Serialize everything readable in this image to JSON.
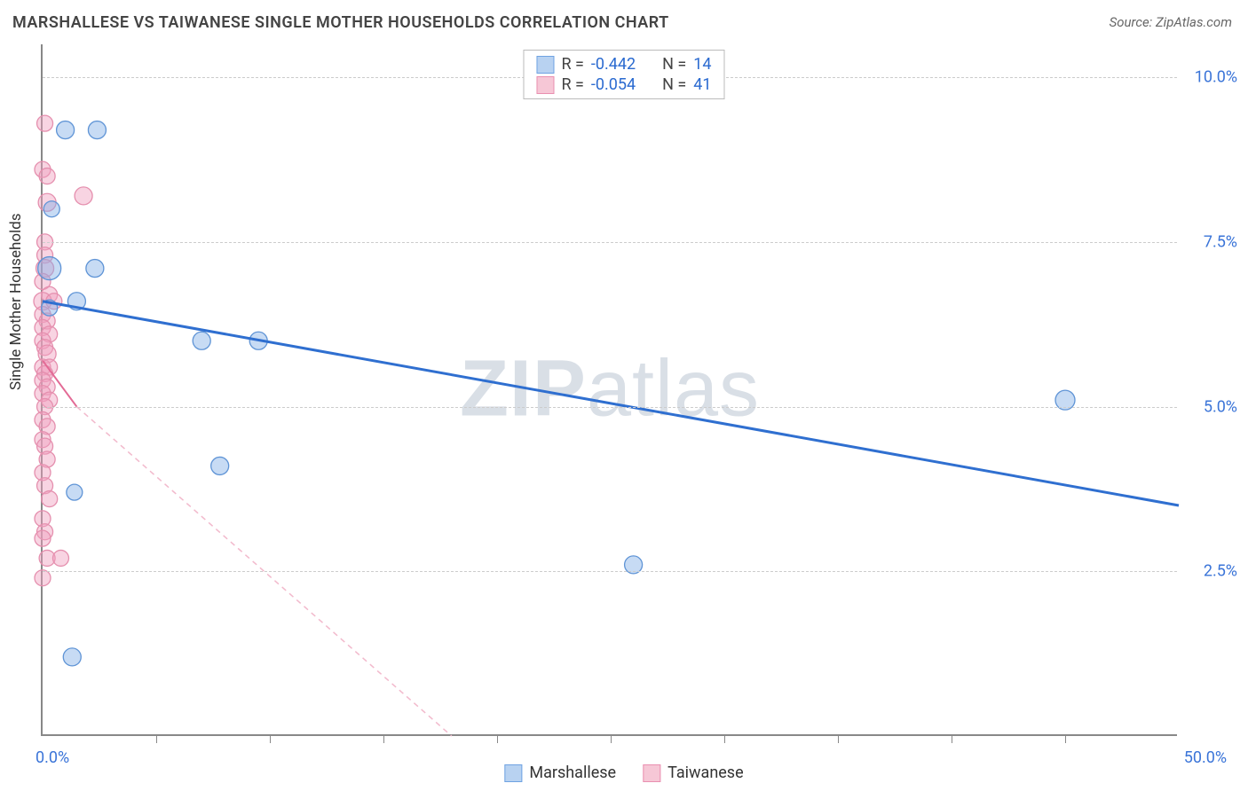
{
  "header": {
    "title": "MARSHALLESE VS TAIWANESE SINGLE MOTHER HOUSEHOLDS CORRELATION CHART",
    "source": "Source: ZipAtlas.com"
  },
  "ylabel": "Single Mother Households",
  "watermark": {
    "zip": "ZIP",
    "atlas": "atlas"
  },
  "axes": {
    "xmin": 0.0,
    "xmax": 50.0,
    "ymin": 0.0,
    "ymax": 10.5,
    "xmin_label": "0.0%",
    "xmax_label": "50.0%",
    "xtick_positions": [
      5,
      10,
      15,
      20,
      25,
      30,
      35,
      40,
      45
    ],
    "yticks": [
      {
        "v": 2.5,
        "label": "2.5%"
      },
      {
        "v": 5.0,
        "label": "5.0%"
      },
      {
        "v": 7.5,
        "label": "7.5%"
      },
      {
        "v": 10.0,
        "label": "10.0%"
      }
    ],
    "grid_color": "#cccccc",
    "axis_color": "#888888",
    "background": "#ffffff"
  },
  "legend_top": {
    "rows": [
      {
        "swatch_fill": "#b8d2f1",
        "swatch_stroke": "#6fa2e2",
        "r_label": "R =",
        "r_value": "-0.442",
        "n_label": "N =",
        "n_value": "14"
      },
      {
        "swatch_fill": "#f6c7d6",
        "swatch_stroke": "#e98fb0",
        "r_label": "R =",
        "r_value": "-0.054",
        "n_label": "N =",
        "n_value": "41"
      }
    ]
  },
  "legend_bottom": {
    "items": [
      {
        "swatch_fill": "#b8d2f1",
        "swatch_stroke": "#6fa2e2",
        "label": "Marshallese"
      },
      {
        "swatch_fill": "#f6c7d6",
        "swatch_stroke": "#e98fb0",
        "label": "Taiwanese"
      }
    ]
  },
  "series": {
    "marshallese": {
      "color_fill": "rgba(130,175,230,0.45)",
      "color_stroke": "#5f94d6",
      "marker_r": 10,
      "points": [
        {
          "x": 1.0,
          "y": 9.2,
          "r": 10
        },
        {
          "x": 2.4,
          "y": 9.2,
          "r": 10
        },
        {
          "x": 0.4,
          "y": 8.0,
          "r": 9
        },
        {
          "x": 0.3,
          "y": 7.1,
          "r": 13
        },
        {
          "x": 2.3,
          "y": 7.1,
          "r": 10
        },
        {
          "x": 1.5,
          "y": 6.6,
          "r": 10
        },
        {
          "x": 0.3,
          "y": 6.5,
          "r": 9
        },
        {
          "x": 7.0,
          "y": 6.0,
          "r": 10
        },
        {
          "x": 9.5,
          "y": 6.0,
          "r": 10
        },
        {
          "x": 45.0,
          "y": 5.1,
          "r": 11
        },
        {
          "x": 7.8,
          "y": 4.1,
          "r": 10
        },
        {
          "x": 1.4,
          "y": 3.7,
          "r": 9
        },
        {
          "x": 26.0,
          "y": 2.6,
          "r": 10
        },
        {
          "x": 1.3,
          "y": 1.2,
          "r": 10
        }
      ],
      "trend": {
        "x1": 0.0,
        "y1": 6.6,
        "x2": 50.0,
        "y2": 3.5,
        "stroke": "#2f6fd0",
        "width": 3,
        "dash": "none"
      }
    },
    "taiwanese": {
      "color_fill": "rgba(240,160,190,0.45)",
      "color_stroke": "#e58fae",
      "marker_r": 9,
      "points": [
        {
          "x": 0.1,
          "y": 9.3,
          "r": 9
        },
        {
          "x": 0.0,
          "y": 8.6,
          "r": 9
        },
        {
          "x": 0.2,
          "y": 8.5,
          "r": 9
        },
        {
          "x": 0.2,
          "y": 8.1,
          "r": 10
        },
        {
          "x": 1.8,
          "y": 8.2,
          "r": 10
        },
        {
          "x": 0.1,
          "y": 7.5,
          "r": 9
        },
        {
          "x": 0.1,
          "y": 7.3,
          "r": 9
        },
        {
          "x": 0.1,
          "y": 7.1,
          "r": 10
        },
        {
          "x": 0.0,
          "y": 6.9,
          "r": 9
        },
        {
          "x": 0.3,
          "y": 6.7,
          "r": 9
        },
        {
          "x": 0.0,
          "y": 6.6,
          "r": 10
        },
        {
          "x": 0.5,
          "y": 6.6,
          "r": 9
        },
        {
          "x": 0.0,
          "y": 6.4,
          "r": 9
        },
        {
          "x": 0.2,
          "y": 6.3,
          "r": 9
        },
        {
          "x": 0.0,
          "y": 6.2,
          "r": 9
        },
        {
          "x": 0.3,
          "y": 6.1,
          "r": 9
        },
        {
          "x": 0.0,
          "y": 6.0,
          "r": 9
        },
        {
          "x": 0.1,
          "y": 5.9,
          "r": 9
        },
        {
          "x": 0.2,
          "y": 5.8,
          "r": 10
        },
        {
          "x": 0.0,
          "y": 5.6,
          "r": 9
        },
        {
          "x": 0.3,
          "y": 5.6,
          "r": 9
        },
        {
          "x": 0.1,
          "y": 5.5,
          "r": 9
        },
        {
          "x": 0.0,
          "y": 5.4,
          "r": 9
        },
        {
          "x": 0.2,
          "y": 5.3,
          "r": 9
        },
        {
          "x": 0.0,
          "y": 5.2,
          "r": 9
        },
        {
          "x": 0.3,
          "y": 5.1,
          "r": 9
        },
        {
          "x": 0.1,
          "y": 5.0,
          "r": 9
        },
        {
          "x": 0.0,
          "y": 4.8,
          "r": 9
        },
        {
          "x": 0.2,
          "y": 4.7,
          "r": 9
        },
        {
          "x": 0.0,
          "y": 4.5,
          "r": 9
        },
        {
          "x": 0.1,
          "y": 4.4,
          "r": 9
        },
        {
          "x": 0.2,
          "y": 4.2,
          "r": 9
        },
        {
          "x": 0.0,
          "y": 4.0,
          "r": 9
        },
        {
          "x": 0.1,
          "y": 3.8,
          "r": 9
        },
        {
          "x": 0.3,
          "y": 3.6,
          "r": 9
        },
        {
          "x": 0.0,
          "y": 3.3,
          "r": 9
        },
        {
          "x": 0.1,
          "y": 3.1,
          "r": 9
        },
        {
          "x": 0.0,
          "y": 3.0,
          "r": 9
        },
        {
          "x": 0.2,
          "y": 2.7,
          "r": 9
        },
        {
          "x": 0.8,
          "y": 2.7,
          "r": 9
        },
        {
          "x": 0.0,
          "y": 2.4,
          "r": 9
        }
      ],
      "trend_solid": {
        "x1": 0.0,
        "y1": 5.7,
        "x2": 1.5,
        "y2": 5.0,
        "stroke": "#e36a95",
        "width": 2
      },
      "trend_dash": {
        "x1": 1.5,
        "y1": 5.0,
        "x2": 18.0,
        "y2": 0.0,
        "stroke": "#f2b9cc",
        "width": 1.5,
        "dash": "6 5"
      }
    }
  }
}
